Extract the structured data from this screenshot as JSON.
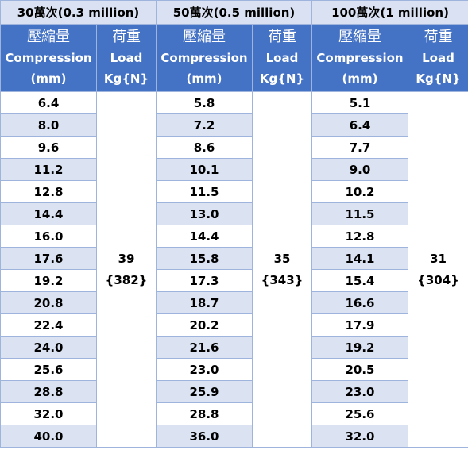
{
  "groups": [
    {
      "title": "30萬次(0.3 million)",
      "compression_header": [
        "壓縮量",
        "Compression",
        "(mm)"
      ],
      "load_header": [
        "荷重",
        "Load",
        "Kg{N}"
      ],
      "compression": [
        "6.4",
        "8.0",
        "9.6",
        "11.2",
        "12.8",
        "14.4",
        "16.0",
        "17.6",
        "19.2",
        "20.8",
        "22.4",
        "24.0",
        "25.6",
        "28.8",
        "32.0",
        "40.0"
      ],
      "load_kg": "39",
      "load_n": "{382}"
    },
    {
      "title": "50萬次(0.5 million)",
      "compression_header": [
        "壓縮量",
        "Compression",
        "(mm)"
      ],
      "load_header": [
        "荷重",
        "Load",
        "Kg{N}"
      ],
      "compression": [
        "5.8",
        "7.2",
        "8.6",
        "10.1",
        "11.5",
        "13.0",
        "14.4",
        "15.8",
        "17.3",
        "18.7",
        "20.2",
        "21.6",
        "23.0",
        "25.9",
        "28.8",
        "36.0"
      ],
      "load_kg": "35",
      "load_n": "{343}"
    },
    {
      "title": "100萬次(1 million)",
      "compression_header": [
        "壓縮量",
        "Compression",
        "(mm)"
      ],
      "load_header": [
        "荷重",
        "Load",
        "Kg{N}"
      ],
      "compression": [
        "5.1",
        "6.4",
        "7.7",
        "9.0",
        "10.2",
        "11.5",
        "12.8",
        "14.1",
        "15.4",
        "16.6",
        "17.9",
        "19.2",
        "20.5",
        "23.0",
        "25.6",
        "32.0"
      ],
      "load_kg": "31",
      "load_n": "{304}"
    }
  ],
  "colors": {
    "header_bg": "#4472c4",
    "group_bg": "#d9e1f2",
    "stripe_bg": "#dbe3f3"
  }
}
